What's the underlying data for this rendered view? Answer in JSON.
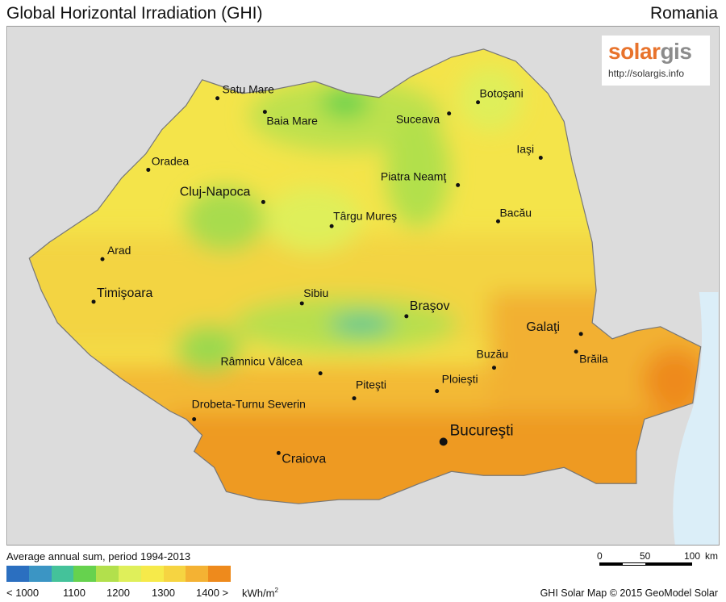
{
  "header": {
    "title": "Global Horizontal Irradiation (GHI)",
    "country": "Romania"
  },
  "logo": {
    "brand_a": "solar",
    "brand_b": "gis",
    "url": "http://solargis.info"
  },
  "cities": [
    {
      "name": "Satu Mare",
      "capital": false
    },
    {
      "name": "Baia Mare",
      "capital": false
    },
    {
      "name": "Suceava",
      "capital": false
    },
    {
      "name": "Botoşani",
      "capital": false
    },
    {
      "name": "Oradea",
      "capital": false
    },
    {
      "name": "Iaşi",
      "capital": false
    },
    {
      "name": "Piatra Neamţ",
      "capital": false
    },
    {
      "name": "Cluj-Napoca",
      "capital": false
    },
    {
      "name": "Târgu Mureş",
      "capital": false
    },
    {
      "name": "Bacău",
      "capital": false
    },
    {
      "name": "Arad",
      "capital": false
    },
    {
      "name": "Timişoara",
      "capital": false
    },
    {
      "name": "Sibiu",
      "capital": false
    },
    {
      "name": "Braşov",
      "capital": false
    },
    {
      "name": "Galaţi",
      "capital": false
    },
    {
      "name": "Brăila",
      "capital": false
    },
    {
      "name": "Buzău",
      "capital": false
    },
    {
      "name": "Râmnicu Vâlcea",
      "capital": false
    },
    {
      "name": "Piteşti",
      "capital": false
    },
    {
      "name": "Ploieşti",
      "capital": false
    },
    {
      "name": "Drobeta-Turnu Severin",
      "capital": false
    },
    {
      "name": "Bucureşti",
      "capital": true
    },
    {
      "name": "Craiova",
      "capital": false
    }
  ],
  "legend": {
    "title": "Average annual sum, period 1994-2013",
    "colors": [
      "#2b6fc0",
      "#3b95c4",
      "#44c29a",
      "#66d24e",
      "#b2e04c",
      "#dfef5a",
      "#f6ea4a",
      "#f6d441",
      "#f4b233",
      "#ee8a1c"
    ],
    "ticks": [
      "< 1000",
      "1100",
      "1200",
      "1300",
      "1400 >"
    ],
    "unit": "kWh/m",
    "unit_sup": "2"
  },
  "scale": {
    "labels": [
      "0",
      "50",
      "100"
    ],
    "unit": "km"
  },
  "credit": "GHI Solar Map © 2015 GeoModel Solar"
}
